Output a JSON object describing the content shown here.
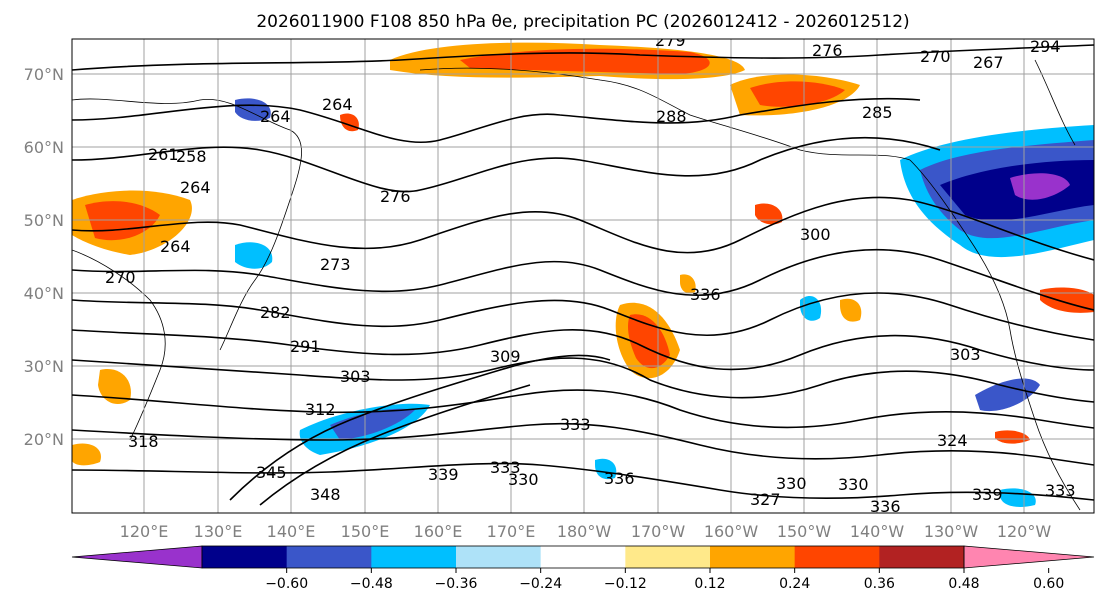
{
  "title": "2026011900 F108 850 hPa θe, precipitation PC (2026012412 - 2026012512)",
  "map": {
    "lat_labels": [
      "70°N",
      "60°N",
      "50°N",
      "40°N",
      "30°N",
      "20°N"
    ],
    "lon_labels": [
      "120°E",
      "130°E",
      "140°E",
      "150°E",
      "160°E",
      "170°E",
      "180°W",
      "170°W",
      "160°W",
      "150°W",
      "140°W",
      "130°W",
      "120°W"
    ],
    "contour_labels": [
      "279",
      "276",
      "270",
      "267",
      "264",
      "264",
      "261",
      "258",
      "264",
      "264",
      "270",
      "276",
      "273",
      "282",
      "288",
      "285",
      "291",
      "303",
      "309",
      "312",
      "318",
      "300",
      "303",
      "324",
      "333",
      "330",
      "333",
      "336",
      "345",
      "348",
      "339",
      "336",
      "327",
      "330",
      "330",
      "336",
      "339",
      "333",
      "294"
    ]
  },
  "colorbar": {
    "ticks": [
      "−0.60",
      "−0.48",
      "−0.36",
      "−0.24",
      "−0.12",
      "0.12",
      "0.24",
      "0.36",
      "0.48",
      "0.60"
    ],
    "colors": [
      "#9932cc",
      "#00008b",
      "#3a56c9",
      "#00bfff",
      "#aee2f8",
      "#ffffff",
      "#ffe98a",
      "#ffa500",
      "#ff4500",
      "#b22222",
      "#ff85b0"
    ]
  },
  "colors": {
    "gridline": "#a0a0a0",
    "contour": "#000000",
    "frame": "#000000"
  }
}
